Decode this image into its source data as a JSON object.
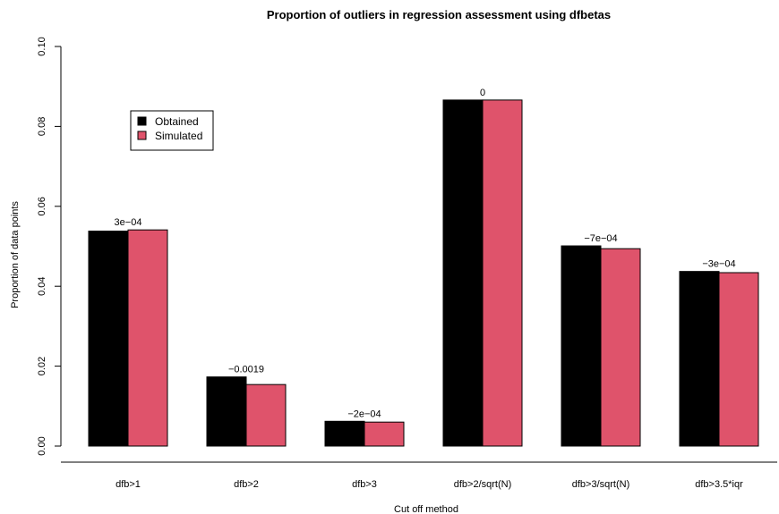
{
  "chart_data": {
    "type": "bar",
    "title": "Proportion of outliers in regression assessment using dfbetas",
    "xlabel": "Cut off method",
    "ylabel": "Proportion of data points",
    "ylim": [
      0,
      0.1
    ],
    "yticks": [
      "0.00",
      "0.02",
      "0.04",
      "0.06",
      "0.08",
      "0.10"
    ],
    "categories": [
      "dfb>1",
      "dfb>2",
      "dfb>3",
      "dfb>2/sqrt(N)",
      "dfb>3/sqrt(N)",
      "dfb>3.5*iqr"
    ],
    "series": [
      {
        "name": "Obtained",
        "color": "#000000",
        "values": [
          0.0538,
          0.0173,
          0.0062,
          0.0866,
          0.0501,
          0.0437
        ]
      },
      {
        "name": "Simulated",
        "color": "#DF536B",
        "values": [
          0.0541,
          0.0154,
          0.006,
          0.0866,
          0.0494,
          0.0434
        ]
      }
    ],
    "data_labels": [
      "3e−04",
      "−0.0019",
      "−2e−04",
      "0",
      "−7e−04",
      "−3e−04"
    ],
    "grid": false,
    "legend_position": "top-left"
  }
}
